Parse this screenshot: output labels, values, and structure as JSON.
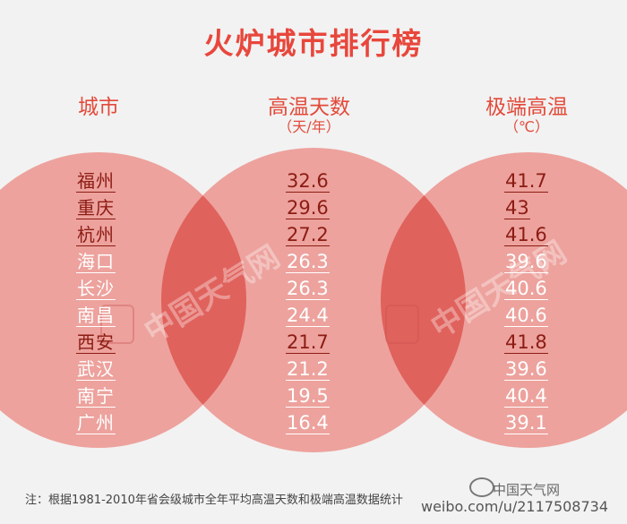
{
  "chart_data": {
    "type": "table",
    "title": "火炉城市排行榜",
    "columns": [
      {
        "header": "城市",
        "unit": ""
      },
      {
        "header": "高温天数",
        "unit": "（天/年）"
      },
      {
        "header": "极端高温",
        "unit": "（℃）"
      }
    ],
    "rows": [
      {
        "city": "福州",
        "hot_days": "32.6",
        "max_temp": "41.7",
        "highlight": true
      },
      {
        "city": "重庆",
        "hot_days": "29.6",
        "max_temp": "43",
        "highlight": true
      },
      {
        "city": "杭州",
        "hot_days": "27.2",
        "max_temp": "41.6",
        "highlight": true
      },
      {
        "city": "海口",
        "hot_days": "26.3",
        "max_temp": "39.6",
        "highlight": false
      },
      {
        "city": "长沙",
        "hot_days": "26.3",
        "max_temp": "40.6",
        "highlight": false
      },
      {
        "city": "南昌",
        "hot_days": "24.4",
        "max_temp": "40.6",
        "highlight": false
      },
      {
        "city": "西安",
        "hot_days": "21.7",
        "max_temp": "41.8",
        "highlight": true
      },
      {
        "city": "武汉",
        "hot_days": "21.2",
        "max_temp": "39.6",
        "highlight": false
      },
      {
        "city": "南宁",
        "hot_days": "19.5",
        "max_temp": "40.4",
        "highlight": false
      },
      {
        "city": "广州",
        "hot_days": "16.4",
        "max_temp": "39.1",
        "highlight": false
      }
    ],
    "colors": {
      "circle": "#eda29d",
      "overlap": "#e0625c",
      "title": "#e8473c",
      "highlight_text": "#8b1c14",
      "normal_text": "#ffffff"
    }
  },
  "watermark": "中国天气网",
  "footnote": "注：根据1981-2010年省会级城市全年平均高温天数和极端高温数据统计",
  "brand": {
    "name": "中国天气网",
    "url": "weibo.com/u/2117508734"
  }
}
